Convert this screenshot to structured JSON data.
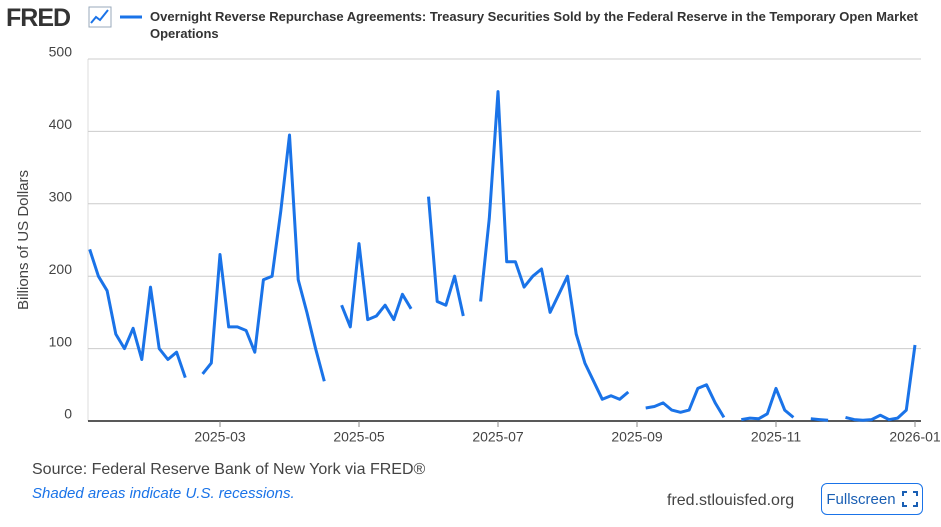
{
  "header": {
    "logo": "FRED"
  },
  "chart_data": {
    "type": "line",
    "title": "Overnight Reverse Repurchase Agreements: Treasury Securities Sold by the Federal Reserve in the Temporary Open Market Operations",
    "y_label": "Billions of US Dollars",
    "categories": [
      null,
      null,
      null,
      null,
      null,
      null,
      null,
      null,
      null,
      null,
      null,
      null,
      null,
      null,
      null,
      "2025-03",
      null,
      null,
      null,
      null,
      null,
      null,
      null,
      null,
      null,
      null,
      null,
      null,
      null,
      null,
      null,
      "2025-05",
      null,
      null,
      null,
      null,
      null,
      null,
      null,
      null,
      null,
      null,
      null,
      null,
      null,
      null,
      null,
      "2025-07",
      null,
      null,
      null,
      null,
      null,
      null,
      null,
      null,
      null,
      null,
      null,
      null,
      null,
      null,
      null,
      "2025-09",
      null,
      null,
      null,
      null,
      null,
      null,
      null,
      null,
      null,
      null,
      null,
      null,
      null,
      null,
      null,
      "2025-11",
      null,
      null,
      null,
      null,
      null,
      null,
      null,
      null,
      null,
      null,
      null,
      null,
      null,
      null,
      null,
      "2026-01"
    ],
    "series": [
      {
        "name": "Overnight Reverse Repurchase Agreements: Treasury Securities Sold by the Federal Reserve in the Temporary Open Market Operations",
        "color": "#1a73e8",
        "values": [
          237,
          200,
          180,
          120,
          100,
          128,
          85,
          185,
          100,
          85,
          95,
          60,
          null,
          65,
          80,
          230,
          130,
          130,
          125,
          95,
          195,
          200,
          290,
          395,
          195,
          150,
          100,
          55,
          null,
          160,
          130,
          245,
          140,
          145,
          160,
          140,
          175,
          155,
          null,
          310,
          165,
          160,
          200,
          145,
          null,
          165,
          280,
          455,
          220,
          220,
          185,
          200,
          210,
          150,
          175,
          200,
          120,
          80,
          55,
          30,
          35,
          30,
          40,
          null,
          18,
          20,
          25,
          15,
          12,
          15,
          45,
          50,
          25,
          5,
          null,
          2,
          4,
          3,
          10,
          45,
          15,
          5,
          null,
          3,
          2,
          1,
          null,
          5,
          2,
          1,
          2,
          8,
          2,
          4,
          15,
          105
        ]
      }
    ],
    "ylim": [
      0,
      500
    ],
    "yticks": [
      0,
      100,
      200,
      300,
      400,
      500
    ],
    "grid": true
  },
  "footer": {
    "source": "Source: Federal Reserve Bank of New York via FRED®",
    "note": "Shaded areas indicate U.S. recessions.",
    "site": "fred.stlouisfed.org",
    "button": "Fullscreen"
  }
}
